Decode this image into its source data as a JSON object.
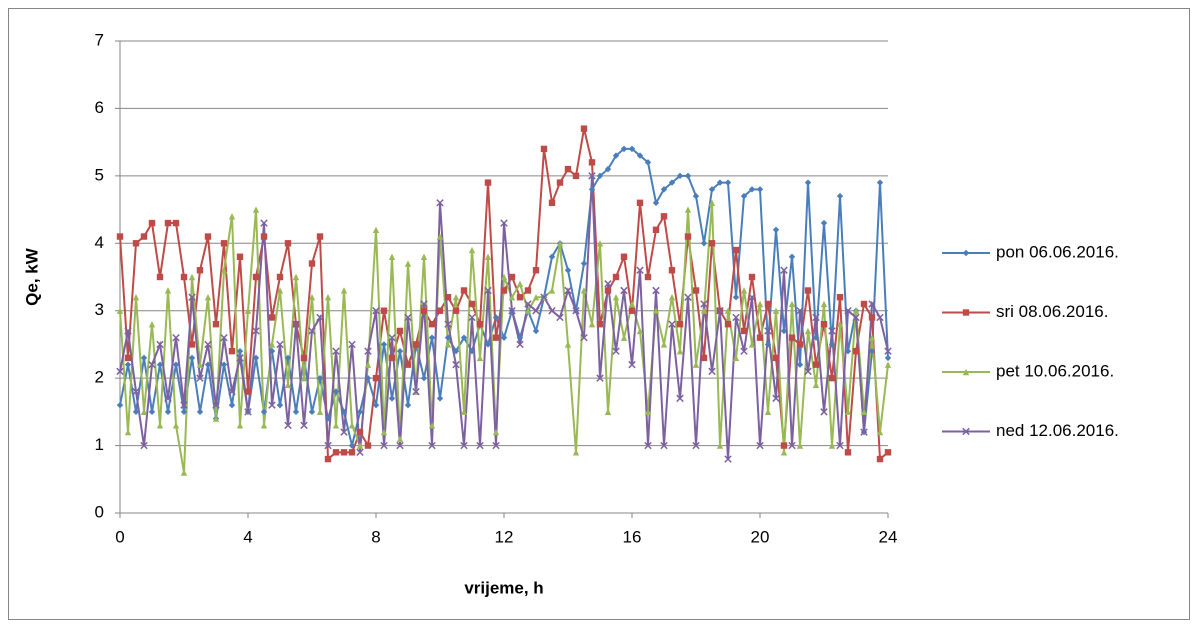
{
  "chart_data": {
    "type": "line",
    "x_label": "vrijeme, h",
    "y_label": "Qe, kW",
    "x": [
      0,
      0.25,
      0.5,
      0.75,
      1,
      1.25,
      1.5,
      1.75,
      2,
      2.25,
      2.5,
      2.75,
      3,
      3.25,
      3.5,
      3.75,
      4,
      4.25,
      4.5,
      4.75,
      5,
      5.25,
      5.5,
      5.75,
      6,
      6.25,
      6.5,
      6.75,
      7,
      7.25,
      7.5,
      7.75,
      8,
      8.25,
      8.5,
      8.75,
      9,
      9.25,
      9.5,
      9.75,
      10,
      10.25,
      10.5,
      10.75,
      11,
      11.25,
      11.5,
      11.75,
      12,
      12.25,
      12.5,
      12.75,
      13,
      13.25,
      13.5,
      13.75,
      14,
      14.25,
      14.5,
      14.75,
      15,
      15.25,
      15.5,
      15.75,
      16,
      16.25,
      16.5,
      16.75,
      17,
      17.25,
      17.5,
      17.75,
      18,
      18.25,
      18.5,
      18.75,
      19,
      19.25,
      19.5,
      19.75,
      20,
      20.25,
      20.5,
      20.75,
      21,
      21.25,
      21.5,
      21.75,
      22,
      22.25,
      22.5,
      22.75,
      23,
      23.25,
      23.5,
      23.75,
      24
    ],
    "series": [
      {
        "name": "pon 06.06.2016.",
        "color": "#4a7ebb",
        "marker": "diamond",
        "values": [
          1.6,
          2.2,
          1.5,
          2.3,
          1.5,
          2.2,
          1.5,
          2.2,
          1.5,
          2.3,
          1.5,
          2.2,
          1.4,
          2.2,
          1.6,
          2.4,
          1.5,
          2.3,
          1.5,
          2.4,
          1.6,
          2.3,
          1.5,
          2.3,
          1.5,
          2.0,
          1.4,
          1.8,
          1.5,
          1.0,
          1.5,
          2.0,
          1.6,
          2.5,
          1.7,
          2.4,
          1.6,
          2.5,
          2.0,
          2.6,
          1.7,
          2.6,
          2.4,
          2.6,
          2.4,
          2.8,
          2.5,
          2.9,
          2.6,
          3.0,
          2.6,
          3.0,
          2.7,
          3.2,
          3.8,
          4.0,
          3.6,
          3.0,
          3.7,
          4.8,
          5.0,
          5.1,
          5.3,
          5.4,
          5.4,
          5.3,
          5.2,
          4.6,
          4.8,
          4.9,
          5.0,
          5.0,
          4.7,
          4.0,
          4.8,
          4.9,
          4.9,
          3.2,
          4.7,
          4.8,
          4.8,
          2.5,
          4.2,
          2.7,
          3.8,
          2.2,
          4.9,
          2.6,
          4.3,
          2.5,
          4.7,
          2.4,
          3.0,
          1.2,
          2.4,
          4.9,
          2.3
        ]
      },
      {
        "name": "sri 08.06.2016.",
        "color": "#be4b48",
        "marker": "square",
        "values": [
          4.1,
          2.3,
          4.0,
          4.1,
          4.3,
          3.5,
          4.3,
          4.3,
          3.5,
          2.5,
          3.6,
          4.1,
          2.8,
          4.0,
          2.4,
          3.8,
          1.8,
          3.5,
          4.1,
          2.9,
          3.5,
          4.0,
          2.8,
          2.3,
          3.7,
          4.1,
          0.8,
          0.9,
          0.9,
          0.9,
          1.2,
          1.0,
          2.0,
          3.0,
          2.3,
          2.7,
          2.2,
          2.5,
          3.0,
          2.8,
          3.0,
          3.2,
          3.0,
          3.3,
          3.1,
          2.8,
          4.9,
          2.6,
          3.3,
          3.5,
          3.2,
          3.3,
          3.6,
          5.4,
          4.6,
          4.9,
          5.1,
          5.0,
          5.7,
          5.2,
          2.8,
          3.3,
          3.5,
          3.8,
          3.0,
          4.6,
          3.5,
          4.2,
          4.4,
          3.6,
          2.8,
          4.1,
          3.3,
          2.3,
          4.0,
          3.0,
          2.8,
          3.9,
          2.7,
          3.5,
          2.6,
          3.1,
          2.3,
          1.0,
          2.6,
          2.5,
          3.3,
          2.2,
          2.8,
          2.0,
          3.2,
          0.9,
          2.4,
          3.1,
          2.9,
          0.8,
          0.9
        ]
      },
      {
        "name": "pet 10.06.2016.",
        "color": "#98b954",
        "marker": "triangle",
        "values": [
          3.0,
          1.2,
          3.2,
          1.5,
          2.8,
          1.3,
          3.3,
          1.3,
          0.6,
          3.5,
          2.2,
          3.2,
          1.4,
          3.6,
          4.4,
          1.3,
          3.0,
          4.5,
          1.3,
          2.5,
          3.3,
          1.9,
          3.5,
          2.0,
          3.2,
          1.5,
          3.2,
          1.3,
          3.3,
          1.3,
          1.0,
          2.2,
          4.2,
          1.2,
          3.8,
          1.1,
          3.7,
          1.8,
          3.8,
          1.3,
          4.1,
          2.5,
          3.2,
          1.5,
          3.9,
          2.3,
          3.8,
          1.2,
          3.5,
          3.2,
          3.4,
          3.0,
          3.2,
          3.2,
          3.3,
          4.0,
          2.5,
          0.9,
          3.3,
          2.8,
          4.0,
          1.5,
          3.2,
          2.6,
          3.1,
          2.7,
          1.5,
          3.0,
          2.5,
          3.2,
          2.4,
          4.5,
          2.2,
          3.0,
          4.6,
          1.0,
          3.0,
          2.3,
          3.3,
          2.5,
          3.1,
          1.5,
          3.0,
          0.9,
          3.1,
          1.0,
          2.7,
          1.9,
          3.1,
          1.0,
          2.8,
          1.5,
          3.0,
          1.5,
          2.6,
          1.2,
          2.2
        ]
      },
      {
        "name": "ned 12.06.2016.",
        "color": "#7d60a0",
        "marker": "x",
        "values": [
          2.1,
          2.7,
          1.8,
          1.0,
          2.2,
          2.5,
          1.7,
          2.6,
          1.6,
          3.2,
          2.0,
          2.5,
          1.6,
          2.6,
          1.8,
          2.3,
          1.5,
          2.7,
          4.3,
          1.6,
          2.5,
          1.3,
          2.8,
          1.3,
          2.7,
          2.9,
          1.0,
          2.4,
          1.2,
          2.5,
          0.9,
          2.4,
          3.0,
          1.0,
          2.6,
          1.0,
          2.9,
          1.8,
          3.1,
          1.0,
          4.6,
          2.8,
          2.2,
          1.0,
          2.9,
          1.0,
          3.3,
          1.0,
          4.3,
          3.0,
          2.5,
          3.1,
          3.0,
          3.2,
          3.0,
          2.9,
          3.3,
          3.0,
          2.6,
          5.0,
          2.0,
          3.4,
          2.4,
          3.3,
          2.2,
          3.6,
          1.0,
          3.3,
          1.0,
          2.8,
          1.7,
          3.2,
          1.0,
          3.1,
          2.1,
          3.0,
          0.8,
          2.9,
          2.4,
          3.2,
          1.0,
          2.7,
          1.7,
          3.6,
          1.0,
          3.0,
          2.1,
          2.9,
          1.5,
          2.7,
          1.0,
          3.0,
          2.9,
          1.2,
          3.1,
          2.9,
          2.4
        ]
      }
    ],
    "xlim": [
      0,
      24
    ],
    "xticks": [
      0,
      4,
      8,
      12,
      16,
      20,
      24
    ],
    "ylim": [
      0,
      7
    ],
    "yticks": [
      0,
      1,
      2,
      3,
      4,
      5,
      6,
      7
    ],
    "grid": true,
    "legend": "right"
  }
}
